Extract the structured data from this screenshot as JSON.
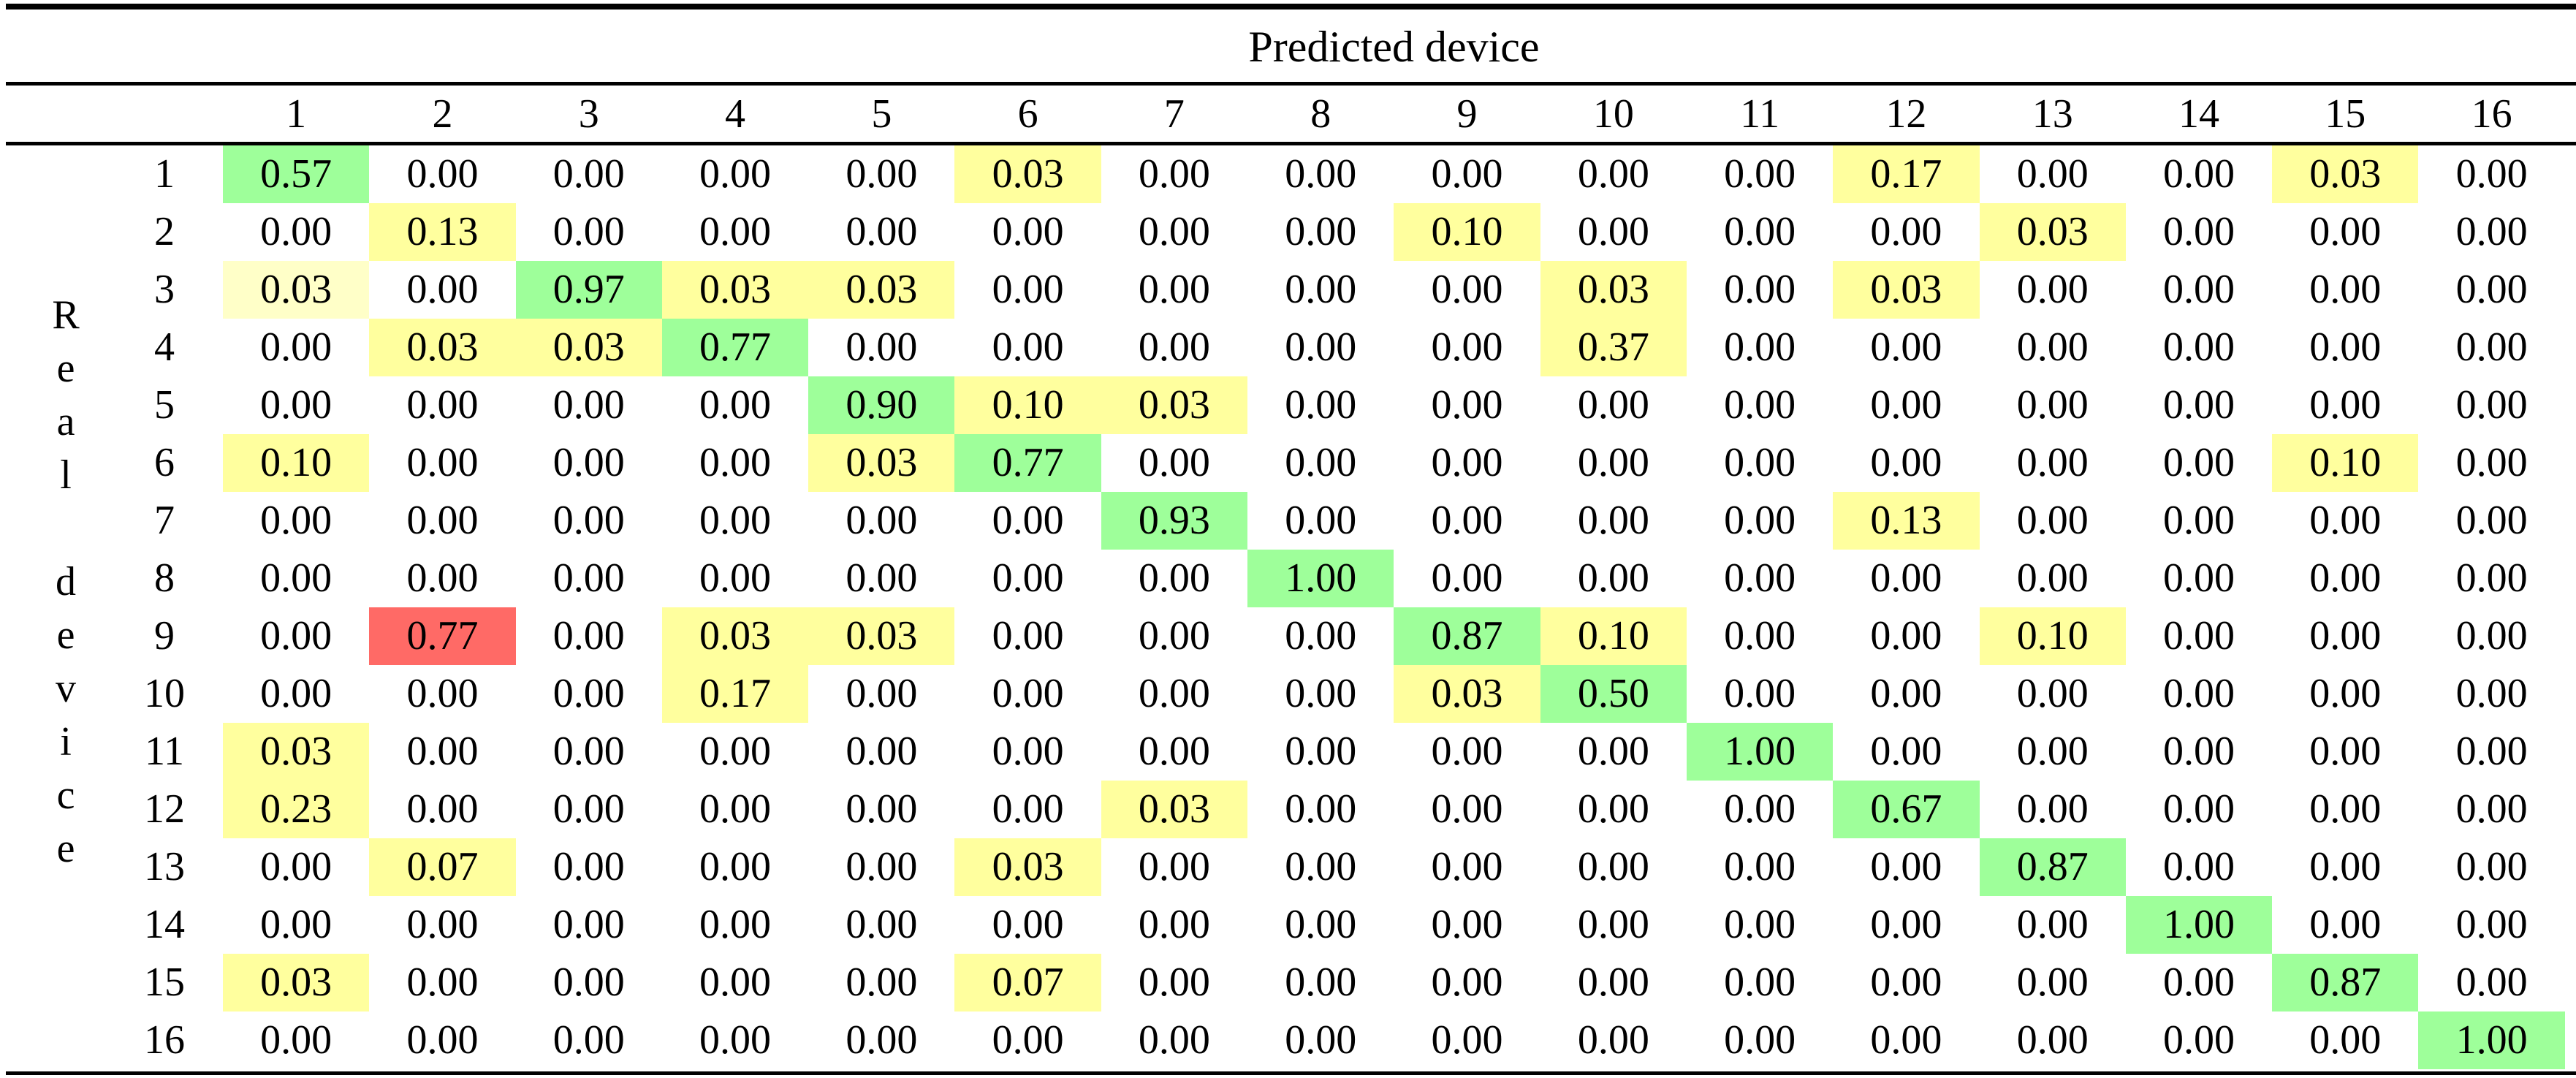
{
  "table": {
    "column_group_label": "Predicted device",
    "row_group_label": "Real device",
    "row_group_letters": [
      "R",
      "e",
      "a",
      "l",
      " ",
      "d",
      "e",
      "v",
      "i",
      "c",
      "e"
    ],
    "colors": {
      "correct": "#9eff9a",
      "confusion": "#ffff9e",
      "minor_confusion": "#ffffc8",
      "major_error": "#ff6a66",
      "none": "#ffffff"
    },
    "columns": [
      "1",
      "2",
      "3",
      "4",
      "5",
      "6",
      "7",
      "8",
      "9",
      "10",
      "11",
      "12",
      "13",
      "14",
      "15",
      "16"
    ],
    "rows": [
      {
        "label": "1",
        "values": [
          "0.57",
          "0.00",
          "0.00",
          "0.00",
          "0.00",
          "0.03",
          "0.00",
          "0.00",
          "0.00",
          "0.00",
          "0.00",
          "0.17",
          "0.00",
          "0.00",
          "0.03",
          "0.00"
        ],
        "highlights": [
          "correct",
          "none",
          "none",
          "none",
          "none",
          "confusion",
          "none",
          "none",
          "none",
          "none",
          "none",
          "confusion",
          "none",
          "none",
          "confusion",
          "none"
        ]
      },
      {
        "label": "2",
        "values": [
          "0.00",
          "0.13",
          "0.00",
          "0.00",
          "0.00",
          "0.00",
          "0.00",
          "0.00",
          "0.10",
          "0.00",
          "0.00",
          "0.00",
          "0.03",
          "0.00",
          "0.00",
          "0.00"
        ],
        "highlights": [
          "none",
          "confusion",
          "none",
          "none",
          "none",
          "none",
          "none",
          "none",
          "confusion",
          "none",
          "none",
          "none",
          "confusion",
          "none",
          "none",
          "none"
        ]
      },
      {
        "label": "3",
        "values": [
          "0.03",
          "0.00",
          "0.97",
          "0.03",
          "0.03",
          "0.00",
          "0.00",
          "0.00",
          "0.00",
          "0.03",
          "0.00",
          "0.03",
          "0.00",
          "0.00",
          "0.00",
          "0.00"
        ],
        "highlights": [
          "minor_confusion",
          "none",
          "correct",
          "confusion",
          "confusion",
          "none",
          "none",
          "none",
          "none",
          "confusion",
          "none",
          "confusion",
          "none",
          "none",
          "none",
          "none"
        ]
      },
      {
        "label": "4",
        "values": [
          "0.00",
          "0.03",
          "0.03",
          "0.77",
          "0.00",
          "0.00",
          "0.00",
          "0.00",
          "0.00",
          "0.37",
          "0.00",
          "0.00",
          "0.00",
          "0.00",
          "0.00",
          "0.00"
        ],
        "highlights": [
          "none",
          "confusion",
          "confusion",
          "correct",
          "none",
          "none",
          "none",
          "none",
          "none",
          "confusion",
          "none",
          "none",
          "none",
          "none",
          "none",
          "none"
        ]
      },
      {
        "label": "5",
        "values": [
          "0.00",
          "0.00",
          "0.00",
          "0.00",
          "0.90",
          "0.10",
          "0.03",
          "0.00",
          "0.00",
          "0.00",
          "0.00",
          "0.00",
          "0.00",
          "0.00",
          "0.00",
          "0.00"
        ],
        "highlights": [
          "none",
          "none",
          "none",
          "none",
          "correct",
          "confusion",
          "confusion",
          "none",
          "none",
          "none",
          "none",
          "none",
          "none",
          "none",
          "none",
          "none"
        ]
      },
      {
        "label": "6",
        "values": [
          "0.10",
          "0.00",
          "0.00",
          "0.00",
          "0.03",
          "0.77",
          "0.00",
          "0.00",
          "0.00",
          "0.00",
          "0.00",
          "0.00",
          "0.00",
          "0.00",
          "0.10",
          "0.00"
        ],
        "highlights": [
          "confusion",
          "none",
          "none",
          "none",
          "confusion",
          "correct",
          "none",
          "none",
          "none",
          "none",
          "none",
          "none",
          "none",
          "none",
          "confusion",
          "none"
        ]
      },
      {
        "label": "7",
        "values": [
          "0.00",
          "0.00",
          "0.00",
          "0.00",
          "0.00",
          "0.00",
          "0.93",
          "0.00",
          "0.00",
          "0.00",
          "0.00",
          "0.13",
          "0.00",
          "0.00",
          "0.00",
          "0.00"
        ],
        "highlights": [
          "none",
          "none",
          "none",
          "none",
          "none",
          "none",
          "correct",
          "none",
          "none",
          "none",
          "none",
          "confusion",
          "none",
          "none",
          "none",
          "none"
        ]
      },
      {
        "label": "8",
        "values": [
          "0.00",
          "0.00",
          "0.00",
          "0.00",
          "0.00",
          "0.00",
          "0.00",
          "1.00",
          "0.00",
          "0.00",
          "0.00",
          "0.00",
          "0.00",
          "0.00",
          "0.00",
          "0.00"
        ],
        "highlights": [
          "none",
          "none",
          "none",
          "none",
          "none",
          "none",
          "none",
          "correct",
          "none",
          "none",
          "none",
          "none",
          "none",
          "none",
          "none",
          "none"
        ]
      },
      {
        "label": "9",
        "values": [
          "0.00",
          "0.77",
          "0.00",
          "0.03",
          "0.03",
          "0.00",
          "0.00",
          "0.00",
          "0.87",
          "0.10",
          "0.00",
          "0.00",
          "0.10",
          "0.00",
          "0.00",
          "0.00"
        ],
        "highlights": [
          "none",
          "major_error",
          "none",
          "confusion",
          "confusion",
          "none",
          "none",
          "none",
          "correct",
          "confusion",
          "none",
          "none",
          "confusion",
          "none",
          "none",
          "none"
        ]
      },
      {
        "label": "10",
        "values": [
          "0.00",
          "0.00",
          "0.00",
          "0.17",
          "0.00",
          "0.00",
          "0.00",
          "0.00",
          "0.03",
          "0.50",
          "0.00",
          "0.00",
          "0.00",
          "0.00",
          "0.00",
          "0.00"
        ],
        "highlights": [
          "none",
          "none",
          "none",
          "confusion",
          "none",
          "none",
          "none",
          "none",
          "confusion",
          "correct",
          "none",
          "none",
          "none",
          "none",
          "none",
          "none"
        ]
      },
      {
        "label": "11",
        "values": [
          "0.03",
          "0.00",
          "0.00",
          "0.00",
          "0.00",
          "0.00",
          "0.00",
          "0.00",
          "0.00",
          "0.00",
          "1.00",
          "0.00",
          "0.00",
          "0.00",
          "0.00",
          "0.00"
        ],
        "highlights": [
          "confusion",
          "none",
          "none",
          "none",
          "none",
          "none",
          "none",
          "none",
          "none",
          "none",
          "correct",
          "none",
          "none",
          "none",
          "none",
          "none"
        ]
      },
      {
        "label": "12",
        "values": [
          "0.23",
          "0.00",
          "0.00",
          "0.00",
          "0.00",
          "0.00",
          "0.03",
          "0.00",
          "0.00",
          "0.00",
          "0.00",
          "0.67",
          "0.00",
          "0.00",
          "0.00",
          "0.00"
        ],
        "highlights": [
          "confusion",
          "none",
          "none",
          "none",
          "none",
          "none",
          "confusion",
          "none",
          "none",
          "none",
          "none",
          "correct",
          "none",
          "none",
          "none",
          "none"
        ]
      },
      {
        "label": "13",
        "values": [
          "0.00",
          "0.07",
          "0.00",
          "0.00",
          "0.00",
          "0.03",
          "0.00",
          "0.00",
          "0.00",
          "0.00",
          "0.00",
          "0.00",
          "0.87",
          "0.00",
          "0.00",
          "0.00"
        ],
        "highlights": [
          "none",
          "confusion",
          "none",
          "none",
          "none",
          "confusion",
          "none",
          "none",
          "none",
          "none",
          "none",
          "none",
          "correct",
          "none",
          "none",
          "none"
        ]
      },
      {
        "label": "14",
        "values": [
          "0.00",
          "0.00",
          "0.00",
          "0.00",
          "0.00",
          "0.00",
          "0.00",
          "0.00",
          "0.00",
          "0.00",
          "0.00",
          "0.00",
          "0.00",
          "1.00",
          "0.00",
          "0.00"
        ],
        "highlights": [
          "none",
          "none",
          "none",
          "none",
          "none",
          "none",
          "none",
          "none",
          "none",
          "none",
          "none",
          "none",
          "none",
          "correct",
          "none",
          "none"
        ]
      },
      {
        "label": "15",
        "values": [
          "0.03",
          "0.00",
          "0.00",
          "0.00",
          "0.00",
          "0.07",
          "0.00",
          "0.00",
          "0.00",
          "0.00",
          "0.00",
          "0.00",
          "0.00",
          "0.00",
          "0.87",
          "0.00"
        ],
        "highlights": [
          "confusion",
          "none",
          "none",
          "none",
          "none",
          "confusion",
          "none",
          "none",
          "none",
          "none",
          "none",
          "none",
          "none",
          "none",
          "correct",
          "none"
        ]
      },
      {
        "label": "16",
        "values": [
          "0.00",
          "0.00",
          "0.00",
          "0.00",
          "0.00",
          "0.00",
          "0.00",
          "0.00",
          "0.00",
          "0.00",
          "0.00",
          "0.00",
          "0.00",
          "0.00",
          "0.00",
          "1.00"
        ],
        "highlights": [
          "none",
          "none",
          "none",
          "none",
          "none",
          "none",
          "none",
          "none",
          "none",
          "none",
          "none",
          "none",
          "none",
          "none",
          "none",
          "correct"
        ]
      }
    ]
  },
  "chart_data": {
    "type": "heatmap",
    "title": "Predicted device",
    "xlabel": "Predicted device",
    "ylabel": "Real device",
    "x": [
      "1",
      "2",
      "3",
      "4",
      "5",
      "6",
      "7",
      "8",
      "9",
      "10",
      "11",
      "12",
      "13",
      "14",
      "15",
      "16"
    ],
    "y": [
      "1",
      "2",
      "3",
      "4",
      "5",
      "6",
      "7",
      "8",
      "9",
      "10",
      "11",
      "12",
      "13",
      "14",
      "15",
      "16"
    ],
    "values": [
      [
        0.57,
        0.0,
        0.0,
        0.0,
        0.0,
        0.03,
        0.0,
        0.0,
        0.0,
        0.0,
        0.0,
        0.17,
        0.0,
        0.0,
        0.03,
        0.0
      ],
      [
        0.0,
        0.13,
        0.0,
        0.0,
        0.0,
        0.0,
        0.0,
        0.0,
        0.1,
        0.0,
        0.0,
        0.0,
        0.03,
        0.0,
        0.0,
        0.0
      ],
      [
        0.03,
        0.0,
        0.97,
        0.03,
        0.03,
        0.0,
        0.0,
        0.0,
        0.0,
        0.03,
        0.0,
        0.03,
        0.0,
        0.0,
        0.0,
        0.0
      ],
      [
        0.0,
        0.03,
        0.03,
        0.77,
        0.0,
        0.0,
        0.0,
        0.0,
        0.0,
        0.37,
        0.0,
        0.0,
        0.0,
        0.0,
        0.0,
        0.0
      ],
      [
        0.0,
        0.0,
        0.0,
        0.0,
        0.9,
        0.1,
        0.03,
        0.0,
        0.0,
        0.0,
        0.0,
        0.0,
        0.0,
        0.0,
        0.0,
        0.0
      ],
      [
        0.1,
        0.0,
        0.0,
        0.0,
        0.03,
        0.77,
        0.0,
        0.0,
        0.0,
        0.0,
        0.0,
        0.0,
        0.0,
        0.0,
        0.1,
        0.0
      ],
      [
        0.0,
        0.0,
        0.0,
        0.0,
        0.0,
        0.0,
        0.93,
        0.0,
        0.0,
        0.0,
        0.0,
        0.13,
        0.0,
        0.0,
        0.0,
        0.0
      ],
      [
        0.0,
        0.0,
        0.0,
        0.0,
        0.0,
        0.0,
        0.0,
        1.0,
        0.0,
        0.0,
        0.0,
        0.0,
        0.0,
        0.0,
        0.0,
        0.0
      ],
      [
        0.0,
        0.77,
        0.0,
        0.03,
        0.03,
        0.0,
        0.0,
        0.0,
        0.87,
        0.1,
        0.0,
        0.0,
        0.1,
        0.0,
        0.0,
        0.0
      ],
      [
        0.0,
        0.0,
        0.0,
        0.17,
        0.0,
        0.0,
        0.0,
        0.0,
        0.03,
        0.5,
        0.0,
        0.0,
        0.0,
        0.0,
        0.0,
        0.0
      ],
      [
        0.03,
        0.0,
        0.0,
        0.0,
        0.0,
        0.0,
        0.0,
        0.0,
        0.0,
        0.0,
        1.0,
        0.0,
        0.0,
        0.0,
        0.0,
        0.0
      ],
      [
        0.23,
        0.0,
        0.0,
        0.0,
        0.0,
        0.0,
        0.03,
        0.0,
        0.0,
        0.0,
        0.0,
        0.67,
        0.0,
        0.0,
        0.0,
        0.0
      ],
      [
        0.0,
        0.07,
        0.0,
        0.0,
        0.0,
        0.03,
        0.0,
        0.0,
        0.0,
        0.0,
        0.0,
        0.0,
        0.87,
        0.0,
        0.0,
        0.0
      ],
      [
        0.0,
        0.0,
        0.0,
        0.0,
        0.0,
        0.0,
        0.0,
        0.0,
        0.0,
        0.0,
        0.0,
        0.0,
        0.0,
        1.0,
        0.0,
        0.0
      ],
      [
        0.03,
        0.0,
        0.0,
        0.0,
        0.0,
        0.07,
        0.0,
        0.0,
        0.0,
        0.0,
        0.0,
        0.0,
        0.0,
        0.0,
        0.87,
        0.0
      ],
      [
        0.0,
        0.0,
        0.0,
        0.0,
        0.0,
        0.0,
        0.0,
        0.0,
        0.0,
        0.0,
        0.0,
        0.0,
        0.0,
        0.0,
        0.0,
        1.0
      ]
    ],
    "legend": [],
    "grid": false
  }
}
